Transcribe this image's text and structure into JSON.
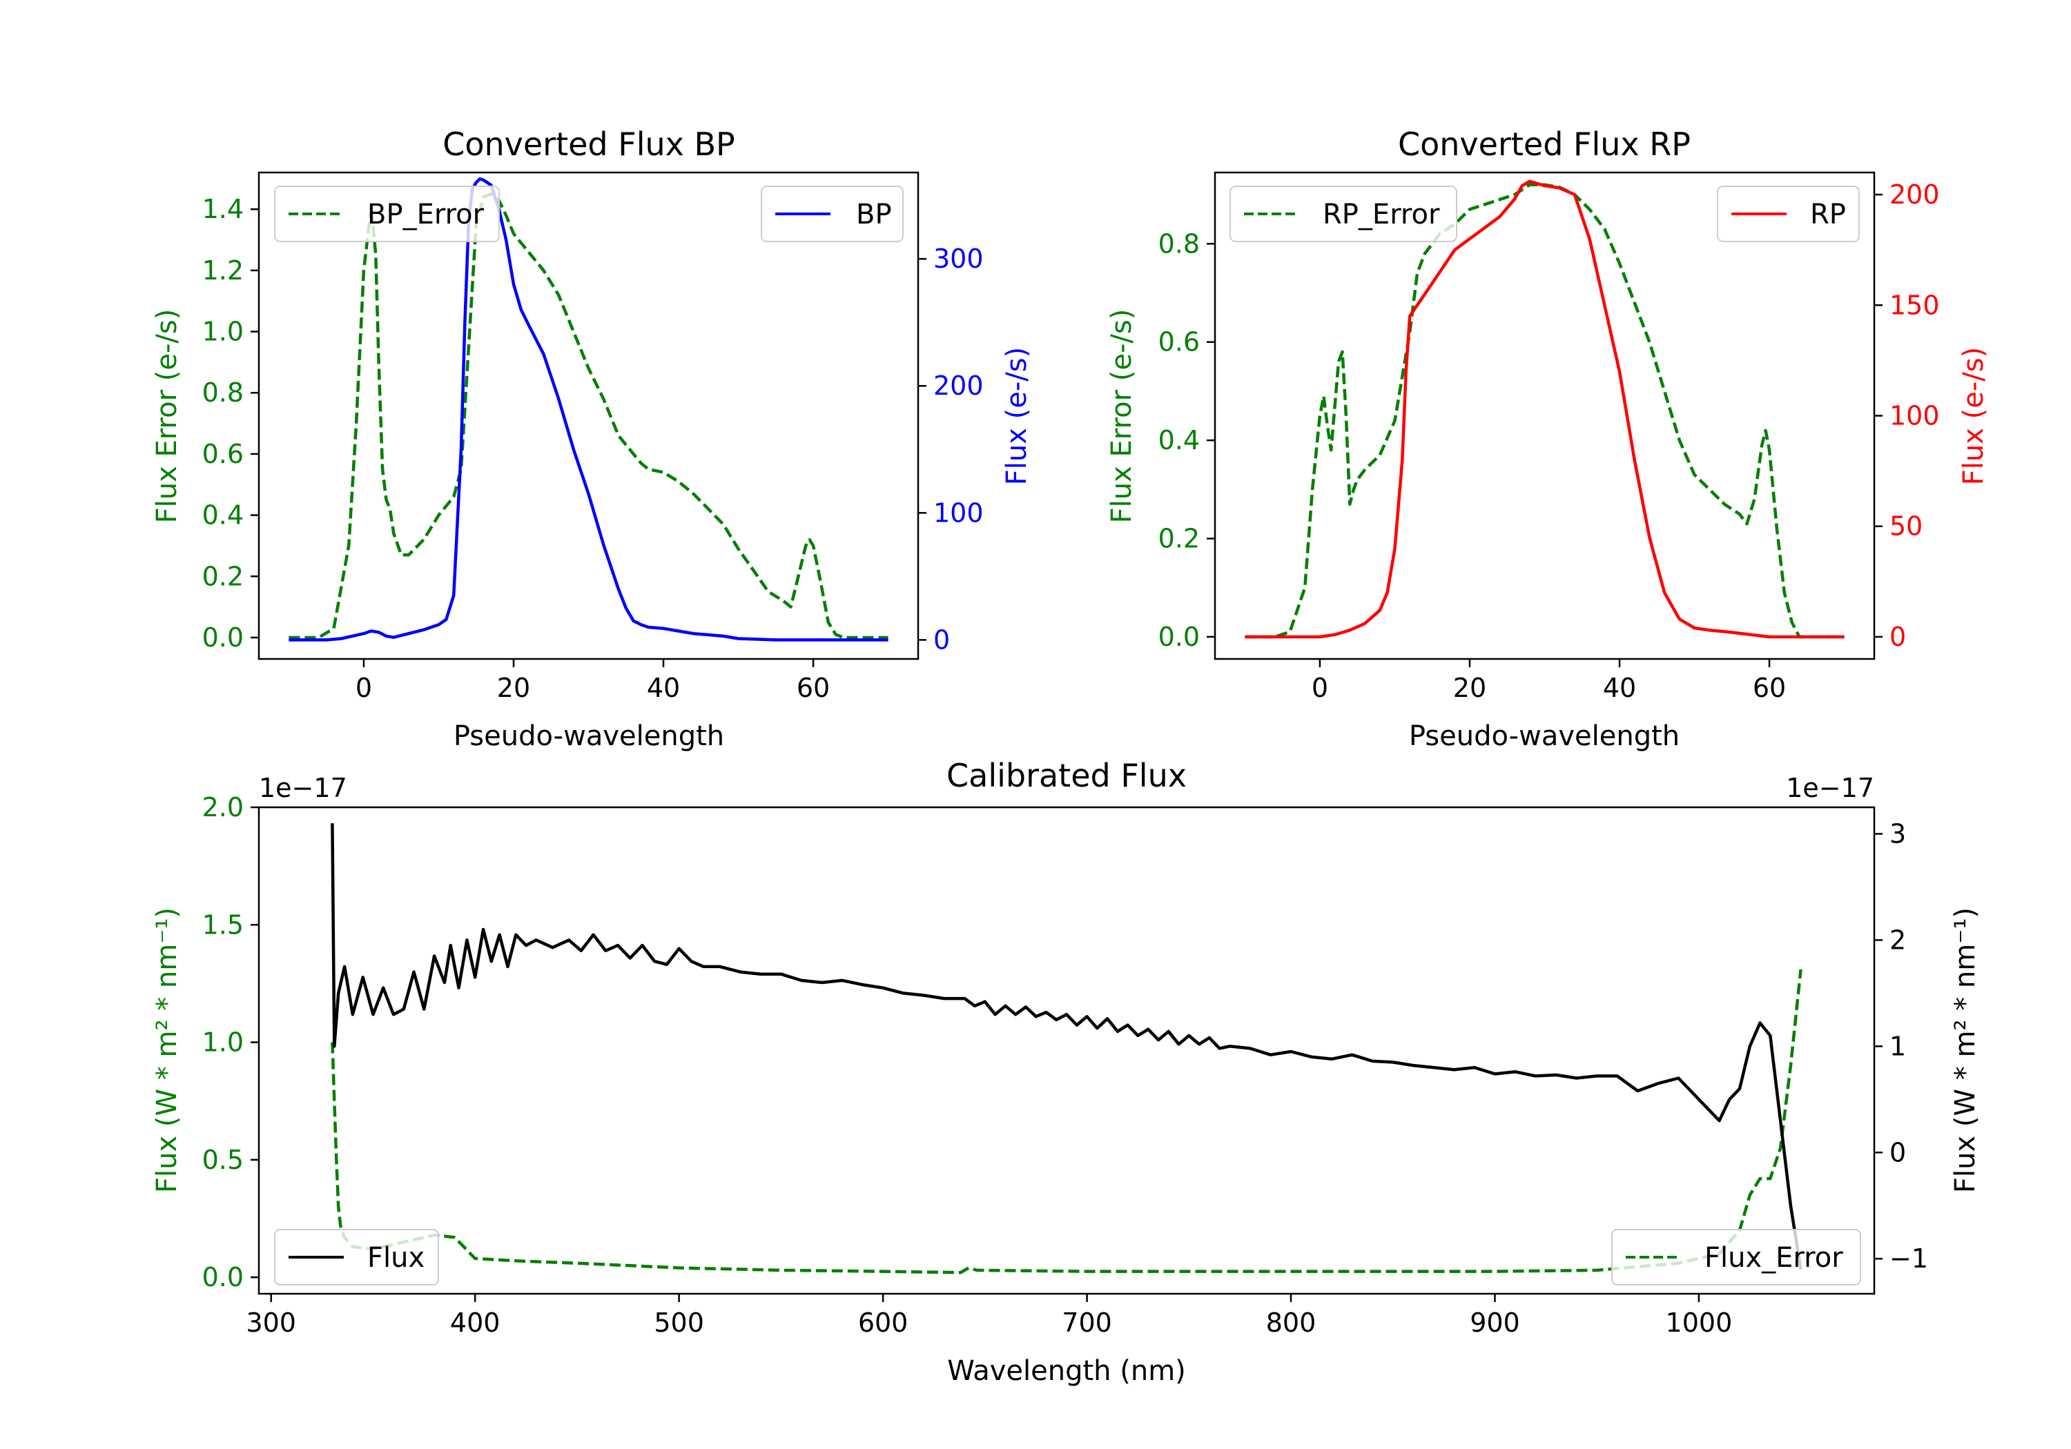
{
  "colors": {
    "green": "#008000",
    "blue": "#0000ff",
    "red": "#ff0000",
    "black": "#000000"
  },
  "chart_data": [
    {
      "id": "bp",
      "type": "line",
      "title": "Converted Flux BP",
      "xlabel": "Pseudo-wavelength",
      "ylabel_left": "Flux Error (e-/s)",
      "ylabel_right": "Flux (e-/s)",
      "xlim": [
        -14,
        74
      ],
      "ylim_left": [
        -0.07,
        1.52
      ],
      "ylim_right": [
        -15,
        368
      ],
      "xticks": [
        0,
        20,
        40,
        60
      ],
      "yticks_left": [
        0.0,
        0.2,
        0.4,
        0.6,
        0.8,
        1.0,
        1.2,
        1.4
      ],
      "yticks_right": [
        0,
        100,
        200,
        300
      ],
      "legend_left": "BP_Error",
      "legend_right": "BP",
      "series": [
        {
          "name": "BP_Error",
          "axis": "left",
          "color": "#008000",
          "dash": true,
          "x": [
            -10,
            -6,
            -4,
            -2,
            -1,
            0,
            1,
            1.6,
            2,
            2.5,
            3,
            3.5,
            4,
            5,
            6,
            8,
            10,
            12,
            13,
            14,
            15,
            16,
            17,
            18,
            19,
            20,
            22,
            24,
            26,
            28,
            30,
            32,
            34,
            36,
            37,
            38,
            40,
            42,
            44,
            46,
            48,
            50,
            52,
            54,
            56,
            57,
            58,
            59,
            59.5,
            60,
            61,
            62,
            63,
            64,
            66,
            70
          ],
          "y": [
            0.0,
            0.0,
            0.03,
            0.3,
            0.7,
            1.2,
            1.41,
            1.25,
            0.9,
            0.55,
            0.45,
            0.42,
            0.34,
            0.27,
            0.27,
            0.32,
            0.4,
            0.46,
            0.55,
            0.95,
            1.35,
            1.44,
            1.45,
            1.43,
            1.38,
            1.32,
            1.26,
            1.2,
            1.12,
            1.0,
            0.88,
            0.78,
            0.66,
            0.6,
            0.57,
            0.55,
            0.54,
            0.51,
            0.47,
            0.42,
            0.37,
            0.29,
            0.22,
            0.15,
            0.12,
            0.1,
            0.2,
            0.3,
            0.32,
            0.3,
            0.18,
            0.05,
            0.01,
            0.0,
            0.0,
            0.0
          ]
        },
        {
          "name": "BP",
          "axis": "right",
          "color": "#0000ff",
          "dash": false,
          "x": [
            -10,
            -5,
            -3,
            0,
            1,
            2,
            3,
            4,
            6,
            8,
            10,
            11,
            12,
            13,
            13.5,
            14,
            14.5,
            15,
            15.5,
            16,
            17,
            18,
            19,
            20,
            21,
            22,
            24,
            26,
            28,
            30,
            32,
            34,
            35,
            36,
            37,
            38,
            40,
            42,
            44,
            46,
            48,
            50,
            55,
            60,
            65,
            70
          ],
          "y": [
            0,
            0,
            1,
            5,
            7,
            6,
            3,
            2,
            5,
            8,
            12,
            16,
            35,
            150,
            250,
            330,
            355,
            360,
            363,
            362,
            358,
            340,
            315,
            280,
            260,
            248,
            225,
            190,
            150,
            115,
            75,
            40,
            25,
            15,
            12,
            10,
            9,
            7,
            5,
            4,
            3,
            1,
            0,
            0,
            0,
            0
          ]
        }
      ]
    },
    {
      "id": "rp",
      "type": "line",
      "title": "Converted Flux RP",
      "xlabel": "Pseudo-wavelength",
      "ylabel_left": "Flux Error (e-/s)",
      "ylabel_right": "Flux (e-/s)",
      "xlim": [
        -14,
        74
      ],
      "ylim_left": [
        -0.045,
        0.945
      ],
      "ylim_right": [
        -10,
        210
      ],
      "xticks": [
        0,
        20,
        40,
        60
      ],
      "yticks_left": [
        0.0,
        0.2,
        0.4,
        0.6,
        0.8
      ],
      "yticks_right": [
        0,
        50,
        100,
        150,
        200
      ],
      "legend_left": "RP_Error",
      "legend_right": "RP",
      "series": [
        {
          "name": "RP_Error",
          "axis": "left",
          "color": "#008000",
          "dash": true,
          "x": [
            -10,
            -6,
            -4,
            -2,
            -1,
            0,
            0.5,
            1,
            1.5,
            2,
            2.5,
            3,
            3.5,
            4,
            4.5,
            5,
            6,
            8,
            10,
            12,
            13,
            14,
            16,
            18,
            20,
            22,
            24,
            26,
            28,
            30,
            32,
            34,
            36,
            38,
            40,
            42,
            44,
            46,
            48,
            50,
            52,
            54,
            55,
            56,
            57,
            58,
            59,
            59.5,
            60,
            61,
            62,
            63,
            64,
            66,
            70
          ],
          "y": [
            0.0,
            0.0,
            0.01,
            0.1,
            0.3,
            0.45,
            0.49,
            0.43,
            0.38,
            0.47,
            0.56,
            0.58,
            0.45,
            0.27,
            0.3,
            0.32,
            0.34,
            0.37,
            0.44,
            0.62,
            0.74,
            0.78,
            0.82,
            0.84,
            0.87,
            0.88,
            0.89,
            0.9,
            0.92,
            0.92,
            0.915,
            0.9,
            0.87,
            0.83,
            0.76,
            0.68,
            0.6,
            0.5,
            0.4,
            0.33,
            0.3,
            0.27,
            0.26,
            0.25,
            0.23,
            0.28,
            0.39,
            0.42,
            0.38,
            0.22,
            0.09,
            0.03,
            0.0,
            0.0,
            0.0
          ]
        },
        {
          "name": "RP",
          "axis": "right",
          "color": "#ff0000",
          "dash": false,
          "x": [
            -10,
            -5,
            0,
            2,
            4,
            6,
            8,
            9,
            10,
            11,
            11.5,
            12,
            13,
            14,
            16,
            18,
            20,
            22,
            24,
            26,
            27,
            28,
            30,
            32,
            34,
            36,
            38,
            40,
            42,
            44,
            46,
            48,
            50,
            52,
            55,
            60,
            65,
            70
          ],
          "y": [
            0,
            0,
            0,
            1,
            3,
            6,
            12,
            20,
            40,
            80,
            120,
            145,
            150,
            155,
            165,
            175,
            180,
            185,
            190,
            198,
            204,
            206,
            204,
            203,
            200,
            180,
            150,
            120,
            80,
            45,
            20,
            8,
            4,
            3,
            2,
            0,
            0,
            0
          ]
        }
      ]
    },
    {
      "id": "calibrated",
      "type": "line",
      "title": "Calibrated Flux",
      "xlabel": "Wavelength (nm)",
      "ylabel_left": "Flux (W * m² * nm⁻¹)",
      "ylabel_right": "Flux (W * m² * nm⁻¹)",
      "offset_left": "1e−17",
      "offset_right": "1e−17",
      "xlim": [
        294,
        1086
      ],
      "ylim_left": [
        -0.07,
        2.0
      ],
      "ylim_right": [
        -1.33,
        3.25
      ],
      "xticks": [
        300,
        400,
        500,
        600,
        700,
        800,
        900,
        1000
      ],
      "yticks_left": [
        0.0,
        0.5,
        1.0,
        1.5,
        2.0
      ],
      "yticks_right": [
        -1,
        0,
        1,
        2,
        3
      ],
      "legend_left": "Flux",
      "legend_right": "Flux_Error",
      "series": [
        {
          "name": "Flux_Error",
          "axis": "left",
          "color": "#008000",
          "dash": true,
          "x": [
            330,
            331,
            332,
            333,
            334,
            336,
            340,
            350,
            360,
            370,
            380,
            390,
            400,
            420,
            450,
            500,
            550,
            600,
            638,
            642,
            646,
            700,
            800,
            900,
            950,
            990,
            1010,
            1020,
            1025,
            1030,
            1035,
            1040,
            1045,
            1050
          ],
          "y": [
            1.0,
            0.75,
            0.5,
            0.3,
            0.22,
            0.17,
            0.13,
            0.12,
            0.14,
            0.16,
            0.18,
            0.17,
            0.08,
            0.07,
            0.06,
            0.04,
            0.03,
            0.025,
            0.02,
            0.04,
            0.03,
            0.025,
            0.025,
            0.025,
            0.03,
            0.06,
            0.1,
            0.2,
            0.35,
            0.42,
            0.42,
            0.55,
            0.9,
            1.31
          ]
        },
        {
          "name": "Flux",
          "axis": "right",
          "color": "#000000",
          "dash": false,
          "x": [
            330,
            331,
            333,
            336,
            340,
            345,
            350,
            355,
            360,
            365,
            370,
            375,
            380,
            385,
            388,
            392,
            396,
            400,
            404,
            408,
            412,
            416,
            420,
            425,
            430,
            438,
            446,
            452,
            458,
            464,
            470,
            476,
            482,
            488,
            494,
            500,
            506,
            512,
            520,
            530,
            540,
            550,
            560,
            570,
            580,
            590,
            600,
            610,
            620,
            630,
            640,
            645,
            650,
            655,
            660,
            665,
            670,
            675,
            680,
            685,
            690,
            695,
            700,
            705,
            710,
            715,
            720,
            725,
            730,
            735,
            740,
            745,
            750,
            755,
            760,
            765,
            770,
            780,
            790,
            800,
            810,
            820,
            830,
            840,
            850,
            860,
            870,
            880,
            890,
            900,
            910,
            920,
            930,
            940,
            950,
            960,
            970,
            980,
            990,
            1000,
            1010,
            1015,
            1020,
            1025,
            1030,
            1035,
            1040,
            1045,
            1050
          ],
          "y": [
            3.1,
            1.0,
            1.5,
            1.75,
            1.3,
            1.65,
            1.3,
            1.55,
            1.3,
            1.35,
            1.7,
            1.35,
            1.85,
            1.6,
            1.95,
            1.55,
            2.0,
            1.65,
            2.1,
            1.8,
            2.05,
            1.75,
            2.05,
            1.95,
            2.0,
            1.93,
            2.0,
            1.9,
            2.05,
            1.9,
            1.95,
            1.83,
            1.95,
            1.8,
            1.77,
            1.92,
            1.8,
            1.75,
            1.75,
            1.7,
            1.68,
            1.68,
            1.62,
            1.6,
            1.62,
            1.58,
            1.55,
            1.5,
            1.48,
            1.45,
            1.45,
            1.38,
            1.42,
            1.3,
            1.38,
            1.3,
            1.37,
            1.28,
            1.32,
            1.25,
            1.3,
            1.2,
            1.28,
            1.17,
            1.26,
            1.14,
            1.2,
            1.1,
            1.16,
            1.06,
            1.14,
            1.02,
            1.1,
            1.02,
            1.08,
            0.98,
            1.0,
            0.98,
            0.92,
            0.95,
            0.9,
            0.88,
            0.92,
            0.86,
            0.85,
            0.82,
            0.8,
            0.78,
            0.8,
            0.74,
            0.76,
            0.72,
            0.73,
            0.7,
            0.72,
            0.72,
            0.58,
            0.65,
            0.7,
            0.5,
            0.3,
            0.5,
            0.6,
            1.0,
            1.22,
            1.1,
            0.3,
            -0.5,
            -1.1
          ]
        }
      ]
    }
  ]
}
